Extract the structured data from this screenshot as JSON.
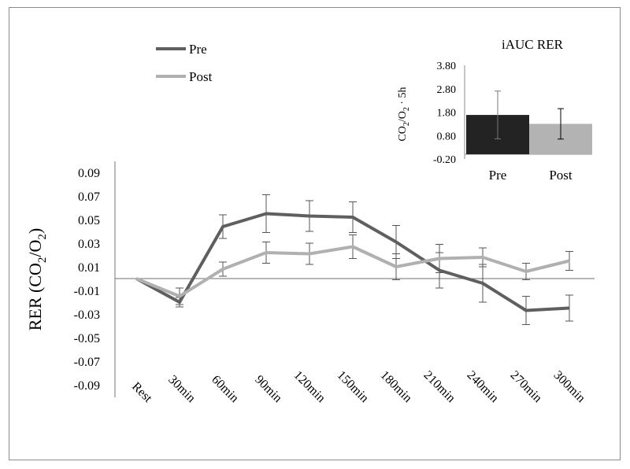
{
  "chart_data": [
    {
      "type": "line",
      "title": "",
      "xlabel": "",
      "ylabel": "RER (CO2/O2)",
      "ylabel_parts": {
        "main": "RER (CO",
        "sub1": "2",
        "mid": "/O",
        "sub2": "2",
        "end": ")"
      },
      "categories": [
        "Rest",
        "30min",
        "60min",
        "90min",
        "120min",
        "150min",
        "180min",
        "210min",
        "240min",
        "270min",
        "300min"
      ],
      "ylim": [
        -0.09,
        0.09
      ],
      "yticks": [
        "0.09",
        "0.07",
        "0.05",
        "0.03",
        "0.01",
        "-0.01",
        "-0.03",
        "-0.05",
        "-0.07",
        "-0.09"
      ],
      "ytick_values": [
        0.09,
        0.07,
        0.05,
        0.03,
        0.01,
        -0.01,
        -0.03,
        -0.05,
        -0.07,
        -0.09
      ],
      "zero_line": 0,
      "grid": false,
      "legend_position": "top-left",
      "series": [
        {
          "name": "Pre",
          "color": "#5f5f5f",
          "values": [
            0.0,
            -0.02,
            0.044,
            0.055,
            0.053,
            0.052,
            0.031,
            0.007,
            -0.004,
            -0.027,
            -0.025
          ],
          "err": [
            0.0,
            0.004,
            0.01,
            0.016,
            0.013,
            0.013,
            0.014,
            0.015,
            0.016,
            0.012,
            0.011
          ]
        },
        {
          "name": "Post",
          "color": "#b0b0b0",
          "values": [
            0.0,
            -0.015,
            0.008,
            0.022,
            0.021,
            0.027,
            0.01,
            0.017,
            0.018,
            0.006,
            0.015
          ],
          "err": [
            0.0,
            0.007,
            0.006,
            0.009,
            0.009,
            0.01,
            0.011,
            0.012,
            0.008,
            0.007,
            0.008
          ]
        }
      ]
    },
    {
      "type": "bar",
      "title": "iAUC RER",
      "ylabel": "CO2/O2 · 5h",
      "ylabel_parts": {
        "main": "CO",
        "sub1": "2",
        "mid": "/O",
        "sub2": "2",
        "end": " · 5h"
      },
      "categories": [
        "Pre",
        "Post"
      ],
      "values": [
        1.68,
        1.3
      ],
      "err": [
        1.02,
        0.65
      ],
      "colors": [
        "#232323",
        "#b3b3b3"
      ],
      "ylim": [
        -0.2,
        3.8
      ],
      "yticks": [
        "3.80",
        "2.80",
        "1.80",
        "0.80",
        "-0.20"
      ],
      "ytick_values": [
        3.8,
        2.8,
        1.8,
        0.8,
        -0.2
      ]
    }
  ]
}
